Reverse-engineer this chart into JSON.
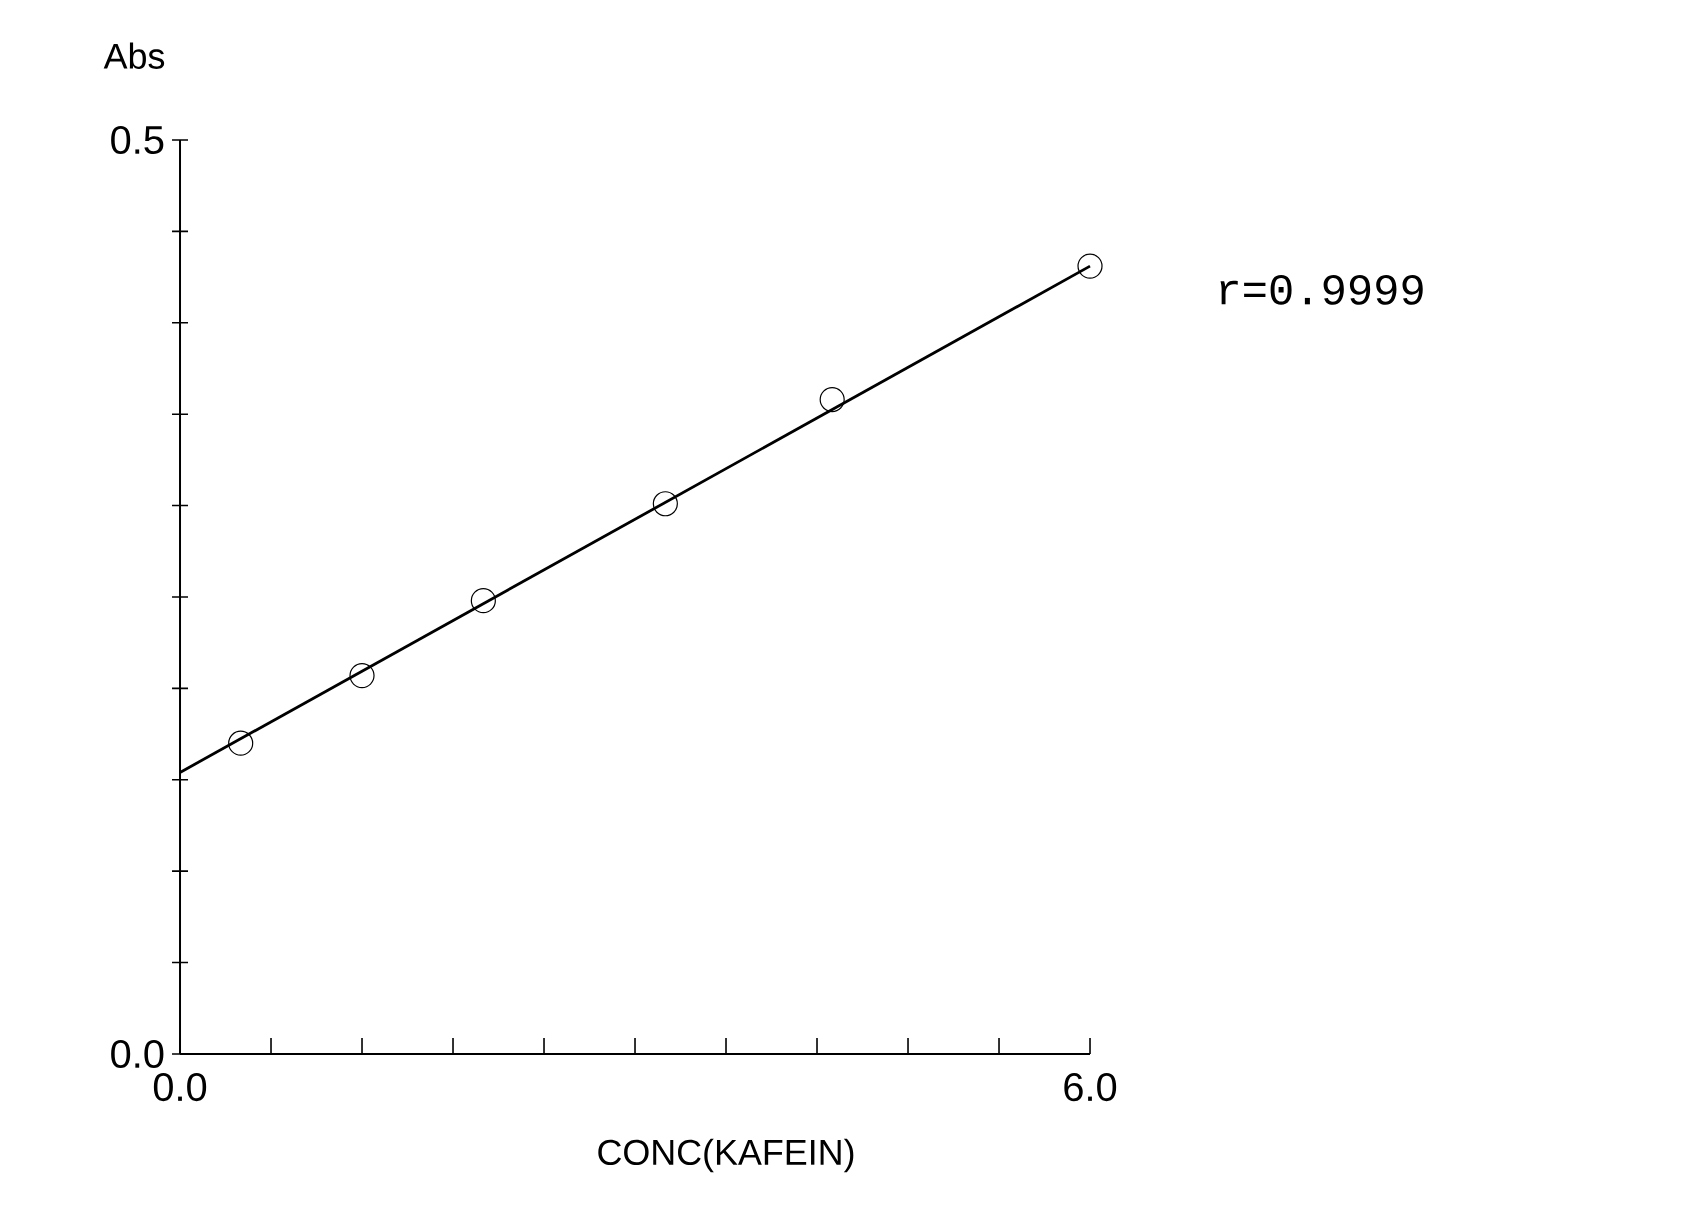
{
  "chart_data": {
    "type": "scatter",
    "xlabel": "CONC(KAFEIN)",
    "ylabel": "Abs",
    "annotations": [
      "r=0.9999"
    ],
    "series": [
      {
        "color": "#000000",
        "marker": "circle",
        "x": [
          0.4,
          1.2,
          2.0,
          3.2,
          4.3,
          6.0
        ],
        "values": [
          0.17,
          0.207,
          0.248,
          0.301,
          0.358,
          0.431
        ]
      },
      {
        "type": "line",
        "color": "#000000",
        "marker": "none",
        "line_style": "solid",
        "x": [
          0,
          6
        ],
        "values": [
          0.154,
          0.431
        ]
      }
    ],
    "xlim": [
      0,
      6
    ],
    "ylim": [
      0,
      0.5
    ],
    "xticks": [
      {
        "value": 0,
        "label": "0.0"
      },
      {
        "value": 0.6,
        "label": null
      },
      {
        "value": 1.2,
        "label": null
      },
      {
        "value": 1.8,
        "label": null
      },
      {
        "value": 2.4,
        "label": null
      },
      {
        "value": 3.0,
        "label": null
      },
      {
        "value": 3.6,
        "label": null
      },
      {
        "value": 4.2,
        "label": null
      },
      {
        "value": 4.8,
        "label": null
      },
      {
        "value": 5.4,
        "label": null
      },
      {
        "value": 6,
        "label": "6.0"
      }
    ],
    "yticks": [
      {
        "value": 0,
        "label": "0.0"
      },
      {
        "value": 0.05,
        "label": null
      },
      {
        "value": 0.1,
        "label": null
      },
      {
        "value": 0.15,
        "label": null
      },
      {
        "value": 0.2,
        "label": null
      },
      {
        "value": 0.25,
        "label": null
      },
      {
        "value": 0.3,
        "label": null
      },
      {
        "value": 0.35,
        "label": null
      },
      {
        "value": 0.4,
        "label": null
      },
      {
        "value": 0.45,
        "label": null
      },
      {
        "value": 0.5,
        "label": "0.5"
      }
    ],
    "grid": false
  }
}
